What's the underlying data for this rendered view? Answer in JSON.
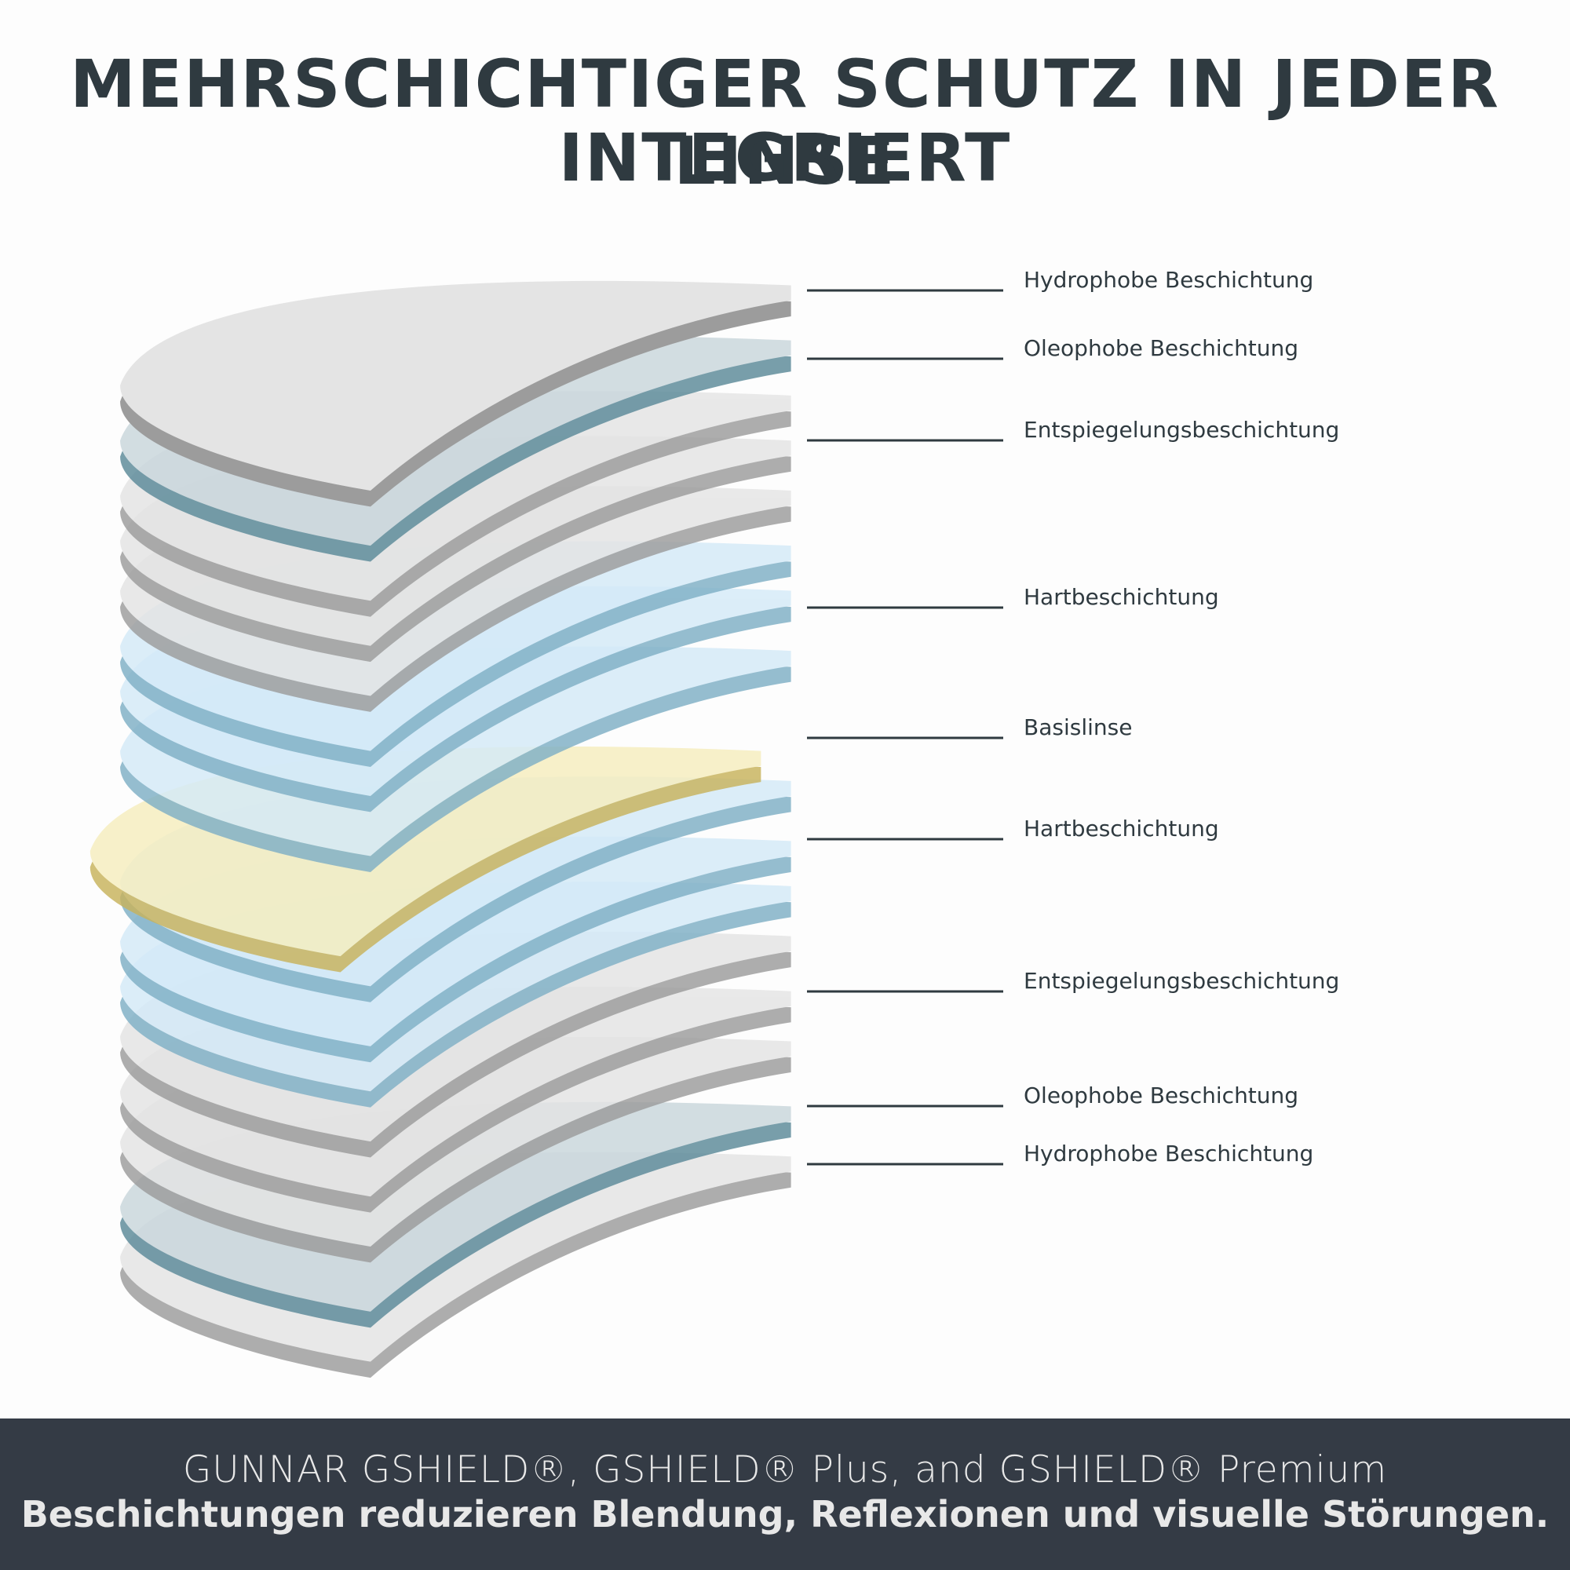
{
  "header": {
    "title_lines": [
      "MEHRSCHICHTIGER SCHUTZ IN JEDER LINSE",
      "INTEGRIERT"
    ]
  },
  "layers": [
    {
      "label": "Hydrophobe Beschichtung"
    },
    {
      "label": "Oleophobe Beschichtung"
    },
    {
      "label": "Entspiegelungsbeschichtung"
    },
    {
      "label": "Hartbeschichtung"
    },
    {
      "label": "Basislinse"
    },
    {
      "label": "Hartbeschichtung"
    },
    {
      "label": "Entspiegelungsbeschichtung"
    },
    {
      "label": "Oleophobe Beschichtung"
    },
    {
      "label": "Hydrophobe Beschichtung"
    }
  ],
  "footer": {
    "lines": [
      "GUNNAR GSHIELD®, GSHIELD® Plus, and GSHIELD® Premium",
      "Beschichtungen reduzieren Blendung, Reflexionen und visuelle Störungen."
    ]
  }
}
